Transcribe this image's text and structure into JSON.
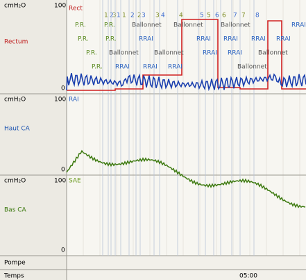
{
  "channels": [
    {
      "unit": "cmH₂O",
      "max": "100",
      "name": "Rectum",
      "zero": "0",
      "tag": "Rect"
    },
    {
      "unit": "cmH₂O",
      "max": "100",
      "name": "Haut CA",
      "zero": "0",
      "tag": "RAI"
    },
    {
      "unit": "cmH₂O",
      "max": "100",
      "name": "Bas CA",
      "zero": "0",
      "tag": "SAE"
    }
  ],
  "rows": {
    "pump": "Pompe",
    "time": "Temps"
  },
  "time_label": "05:00",
  "events": [
    "1",
    "2",
    "3",
    "1",
    "1",
    "2",
    "2",
    "3",
    "3",
    "4",
    "4",
    "5",
    "5",
    "6",
    "6",
    "7",
    "7",
    "8"
  ],
  "annotations": [
    "P.R.",
    "P.R.",
    "Ballonnet",
    "Ballonnet",
    "Ballonnet",
    "RRAI",
    "P.R.",
    "P.R.",
    "RRAI",
    "RRAI",
    "RRAI",
    "RRAI",
    "RRAI",
    "P.R.",
    "Ballonnet",
    "Ballonnet",
    "RRAI",
    "RRAI",
    "Ballonnet",
    "P.R.",
    "RRAI",
    "RRAI",
    "RRAI",
    "Ballonnet"
  ]
}
